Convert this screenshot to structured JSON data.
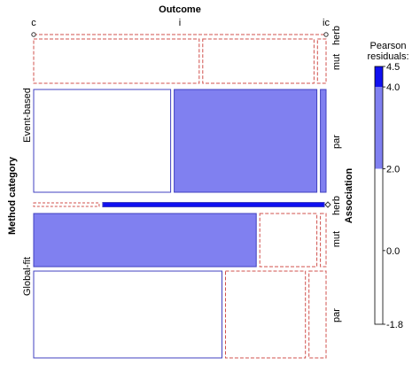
{
  "chart_data": {
    "type": "mosaic",
    "top_label": "Outcome",
    "top_levels": [
      "c",
      "i",
      "ic"
    ],
    "right_label": "Association",
    "right_levels": [
      "herb",
      "mut",
      "par"
    ],
    "left_label": "Method category",
    "left_levels": [
      "Event-based",
      "Global-fit"
    ],
    "legend_title": [
      "Pearson",
      "residuals:"
    ],
    "legend_ticks": [
      "4.5",
      "4.0",
      "2.0",
      "0.0",
      "-1.8"
    ],
    "legend_tick_values": [
      4.5,
      4.0,
      2.0,
      0.0,
      -1.8
    ],
    "legend_range": [
      -1.8,
      4.5
    ],
    "shading_thresholds": [
      2,
      4
    ],
    "colors": {
      "positive_moderate": "#8080f0",
      "positive_strong": "#1010f0",
      "negative_outline": "#d0504c",
      "positive_outline": "#4040c0",
      "neutral_fill": "#ffffff"
    },
    "proportions": {
      "method": [
        0.53,
        0.47
      ],
      "within_method": {
        "Event-based": [
          0.01,
          0.99
        ],
        "Global-fit": [
          0.8,
          0.2
        ]
      },
      "association": {
        "Event-based": [
          0.31,
          0.69
        ],
        "Global-fit": [
          0.02,
          0.37,
          0.61
        ]
      },
      "outcome": {
        "Event-based|mut": [
          0.58,
          0.39,
          0.03
        ],
        "Event-based|par": [
          0.48,
          0.5,
          0.02
        ],
        "Event-based|herb": [
          0.23,
          0.77,
          0.0
        ],
        "Global-fit|mut": [
          0.78,
          0.2,
          0.02
        ],
        "Global-fit|par": [
          0.66,
          0.28,
          0.06
        ]
      }
    },
    "cells": [
      {
        "method": "Event-based",
        "association": "mut",
        "outcome": "c",
        "residual": "neg"
      },
      {
        "method": "Event-based",
        "association": "mut",
        "outcome": "i",
        "residual": "neg"
      },
      {
        "method": "Event-based",
        "association": "mut",
        "outcome": "ic",
        "residual": "neg"
      },
      {
        "method": "Event-based",
        "association": "par",
        "outcome": "c",
        "residual": "pos"
      },
      {
        "method": "Event-based",
        "association": "par",
        "outcome": "i",
        "residual": "2-4"
      },
      {
        "method": "Event-based",
        "association": "par",
        "outcome": "ic",
        "residual": "2-4"
      },
      {
        "method": "Event-based",
        "association": "herb",
        "outcome": "c",
        "residual": "neg"
      },
      {
        "method": "Event-based",
        "association": "herb",
        "outcome": "i",
        "residual": ">4"
      },
      {
        "method": "Event-based",
        "association": "herb",
        "outcome": "ic",
        "residual": "neg"
      },
      {
        "method": "Global-fit",
        "association": "mut",
        "outcome": "c",
        "residual": "2-4"
      },
      {
        "method": "Global-fit",
        "association": "mut",
        "outcome": "i",
        "residual": "neg"
      },
      {
        "method": "Global-fit",
        "association": "mut",
        "outcome": "ic",
        "residual": "neg"
      },
      {
        "method": "Global-fit",
        "association": "par",
        "outcome": "c",
        "residual": "pos"
      },
      {
        "method": "Global-fit",
        "association": "par",
        "outcome": "i",
        "residual": "neg"
      },
      {
        "method": "Global-fit",
        "association": "par",
        "outcome": "ic",
        "residual": "neg"
      }
    ]
  }
}
